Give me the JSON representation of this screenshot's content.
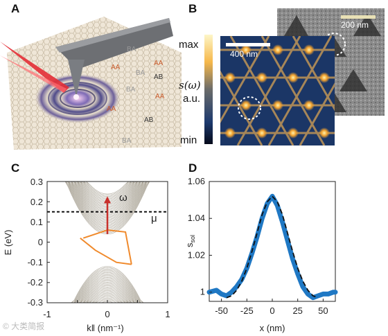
{
  "panels": {
    "a": {
      "letter": "A",
      "stacking_labels": [
        "BA",
        "AA",
        "AA",
        "BA",
        "AB",
        "AA",
        "BA",
        "AA",
        "AB",
        "BA"
      ]
    },
    "b": {
      "letter": "B",
      "colorbar": {
        "max": "max",
        "min": "min",
        "quantity": "s(ω)",
        "unit": "a.u."
      },
      "scalebar_left": "400 nm",
      "scalebar_right": "200 nm"
    },
    "c": {
      "letter": "C",
      "ylabel": "E (eV)",
      "xlabel": "k‖ (nm⁻¹)",
      "x_ticks": [
        "-1",
        "0",
        "1"
      ],
      "y_ticks": [
        "0.3",
        "0.2",
        "0.1",
        "0",
        "-0.1",
        "-0.2",
        "-0.3"
      ],
      "omega_label": "ω",
      "mu_label": "μ",
      "chart_data": {
        "type": "line",
        "xlim": [
          -1,
          1
        ],
        "ylim": [
          -0.3,
          0.3
        ],
        "chemical_potential_eV": 0.15,
        "excitation_arrow": {
          "k": 0.0,
          "from_eV": 0.04,
          "to_eV": 0.22
        },
        "upper_band_bottom_eV": 0.04,
        "lower_band_top_eV": -0.12
      }
    },
    "d": {
      "letter": "D",
      "ylabel": "s",
      "ylabel_sub": "sol",
      "xlabel": "x (nm)",
      "x_ticks": [
        "-50",
        "-25",
        "0",
        "25",
        "50"
      ],
      "y_ticks": [
        "1.06",
        "1.04",
        "1.02",
        "1"
      ],
      "chart_data": {
        "type": "line",
        "xlim": [
          -62,
          62
        ],
        "ylim": [
          0.995,
          1.06
        ],
        "series": [
          {
            "style": "measured",
            "x": [
              -62,
              -55,
              -50,
              -45,
              -40,
              -35,
              -30,
              -25,
              -20,
              -15,
              -10,
              -5,
              0,
              5,
              10,
              15,
              20,
              25,
              30,
              35,
              40,
              45,
              50,
              55,
              60,
              62
            ],
            "y": [
              1.0,
              1.001,
              0.999,
              0.998,
              1.0,
              1.003,
              1.007,
              1.013,
              1.021,
              1.03,
              1.04,
              1.048,
              1.052,
              1.047,
              1.038,
              1.028,
              1.018,
              1.01,
              1.003,
              0.999,
              0.997,
              0.998,
              0.999,
              0.999,
              1.0,
              1.0
            ]
          },
          {
            "style": "fit",
            "x": [
              -45,
              -40,
              -35,
              -30,
              -25,
              -20,
              -15,
              -10,
              -5,
              0,
              5,
              10,
              15,
              20,
              25,
              30,
              35,
              40,
              45
            ],
            "y": [
              0.997,
              0.998,
              1.001,
              1.006,
              1.013,
              1.022,
              1.032,
              1.042,
              1.049,
              1.052,
              1.049,
              1.042,
              1.032,
              1.022,
              1.013,
              1.006,
              1.001,
              0.998,
              0.997
            ]
          }
        ]
      }
    }
  },
  "watermark": "© 大类简报",
  "colors": {
    "band": "#a8a294",
    "orange": "#f08a2c",
    "red_arrow": "#c9302c",
    "blue": "#1f78c4"
  }
}
